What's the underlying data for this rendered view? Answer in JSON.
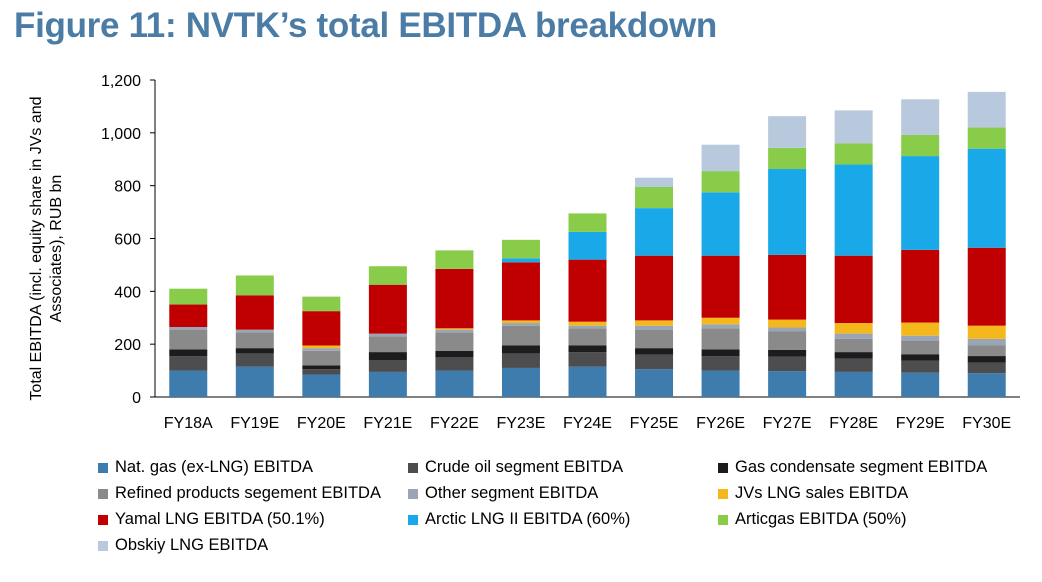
{
  "title": "Figure 11: NVTK’s total EBITDA breakdown",
  "chart_data": {
    "type": "bar",
    "stacked": true,
    "title": "Figure 11: NVTK’s total EBITDA breakdown",
    "xlabel": "",
    "ylabel": "Total EBITDA (incl. equity share in JVs and Associates), RUB bn",
    "ylim": [
      0,
      1200
    ],
    "yticks": [
      0,
      200,
      400,
      600,
      800,
      1000,
      1200
    ],
    "ytick_labels": [
      "0",
      "200",
      "400",
      "600",
      "800",
      "1,000",
      "1,200"
    ],
    "grid": false,
    "legend_position": "bottom",
    "categories": [
      "FY18A",
      "FY19E",
      "FY20E",
      "FY21E",
      "FY22E",
      "FY23E",
      "FY24E",
      "FY25E",
      "FY26E",
      "FY27E",
      "FY28E",
      "FY29E",
      "FY30E"
    ],
    "series": [
      {
        "name": "Nat. gas (ex-LNG) EBITDA",
        "color": "#3d7cad",
        "values": [
          100,
          115,
          85,
          95,
          100,
          110,
          115,
          105,
          100,
          98,
          95,
          92,
          90
        ]
      },
      {
        "name": "Crude oil segment EBITDA",
        "color": "#4d4d4f",
        "values": [
          55,
          50,
          20,
          45,
          50,
          55,
          55,
          55,
          55,
          55,
          50,
          45,
          40
        ]
      },
      {
        "name": "Gas condensate segment EBITDA",
        "color": "#1c1c1c",
        "values": [
          25,
          20,
          15,
          30,
          25,
          30,
          25,
          25,
          25,
          25,
          25,
          25,
          25
        ]
      },
      {
        "name": "Refined products segement EBITDA",
        "color": "#8a8a8a",
        "values": [
          75,
          60,
          55,
          60,
          70,
          75,
          65,
          70,
          80,
          70,
          50,
          50,
          40
        ]
      },
      {
        "name": "Other segment EBITDA",
        "color": "#9aa5b5",
        "values": [
          10,
          10,
          10,
          10,
          10,
          10,
          10,
          15,
          15,
          15,
          20,
          20,
          25
        ]
      },
      {
        "name": "JVs LNG sales EBITDA",
        "color": "#f5b81c",
        "values": [
          0,
          0,
          10,
          0,
          5,
          10,
          15,
          20,
          25,
          30,
          40,
          50,
          50
        ]
      },
      {
        "name": "Yamal LNG EBITDA (50.1%)",
        "color": "#c00000",
        "values": [
          85,
          130,
          130,
          185,
          225,
          220,
          235,
          245,
          235,
          245,
          255,
          275,
          295
        ]
      },
      {
        "name": "Arctic LNG II EBITDA (60%)",
        "color": "#1aa9e8",
        "values": [
          0,
          0,
          0,
          0,
          0,
          15,
          105,
          180,
          240,
          325,
          345,
          355,
          375
        ]
      },
      {
        "name": "Articgas EBITDA (50%)",
        "color": "#88cc4a",
        "values": [
          60,
          75,
          55,
          70,
          70,
          70,
          70,
          80,
          80,
          80,
          80,
          80,
          80
        ]
      },
      {
        "name": "Obskiy LNG EBITDA",
        "color": "#b8c9dd",
        "values": [
          0,
          0,
          0,
          0,
          0,
          0,
          0,
          35,
          100,
          120,
          125,
          135,
          135
        ]
      }
    ]
  }
}
